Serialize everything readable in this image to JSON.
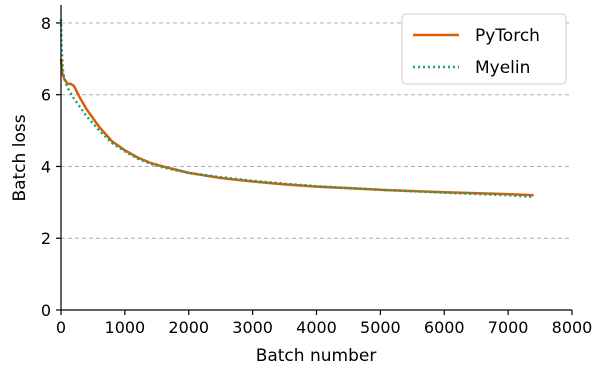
{
  "chart_data": {
    "type": "line",
    "title": "",
    "xlabel": "Batch number",
    "ylabel": "Batch loss",
    "xlim": [
      0,
      8000
    ],
    "ylim": [
      0,
      8.5
    ],
    "x_ticks": [
      0,
      1000,
      2000,
      3000,
      4000,
      5000,
      6000,
      7000,
      8000
    ],
    "y_ticks": [
      0,
      2,
      4,
      6,
      8
    ],
    "grid": "horizontal-dashed",
    "legend": "top-right",
    "series": [
      {
        "name": "PyTorch",
        "color": "#d95f02",
        "style": "solid",
        "x": [
          0,
          20,
          50,
          100,
          150,
          200,
          300,
          400,
          600,
          800,
          1000,
          1200,
          1400,
          1600,
          2000,
          2500,
          3000,
          3500,
          4000,
          5000,
          6000,
          7000,
          7400
        ],
        "y": [
          7.0,
          6.6,
          6.45,
          6.3,
          6.3,
          6.25,
          5.9,
          5.6,
          5.1,
          4.7,
          4.45,
          4.25,
          4.1,
          4.0,
          3.82,
          3.68,
          3.58,
          3.5,
          3.44,
          3.35,
          3.28,
          3.23,
          3.2
        ]
      },
      {
        "name": "Myelin",
        "color": "#1b9e77",
        "style": "dotted",
        "x": [
          0,
          10,
          30,
          50,
          100,
          150,
          200,
          300,
          400,
          600,
          800,
          1000,
          1200,
          1400,
          1600,
          2000,
          2500,
          3000,
          3500,
          4000,
          5000,
          6000,
          7000,
          7400
        ],
        "y": [
          8.1,
          7.3,
          6.7,
          6.45,
          6.2,
          6.05,
          5.9,
          5.65,
          5.4,
          5.0,
          4.65,
          4.42,
          4.22,
          4.08,
          3.97,
          3.82,
          3.7,
          3.6,
          3.52,
          3.45,
          3.35,
          3.27,
          3.2,
          3.15
        ]
      }
    ]
  }
}
